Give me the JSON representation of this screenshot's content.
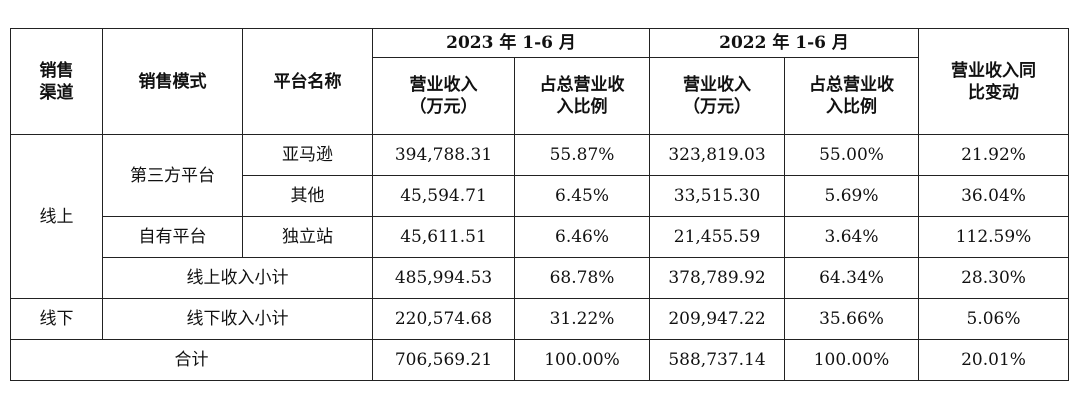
{
  "table": {
    "headers": {
      "channel": "销售\n渠道",
      "mode": "销售模式",
      "platform": "平台名称",
      "period_2023": "2023 年 1-6 月",
      "period_2022": "2022 年 1-6 月",
      "revenue": "营业收入\n（万元）",
      "ratio": "占总营业收\n入比例",
      "yoy": "营业收入同\n比变动"
    },
    "rows": {
      "amazon": {
        "channel": "线上",
        "mode": "第三方平台",
        "platform": "亚马逊",
        "rev_2023": "394,788.31",
        "ratio_2023": "55.87%",
        "rev_2022": "323,819.03",
        "ratio_2022": "55.00%",
        "yoy": "21.92%"
      },
      "other": {
        "platform": "其他",
        "rev_2023": "45,594.71",
        "ratio_2023": "6.45%",
        "rev_2022": "33,515.30",
        "ratio_2022": "5.69%",
        "yoy": "36.04%"
      },
      "own_site": {
        "mode": "自有平台",
        "platform": "独立站",
        "rev_2023": "45,611.51",
        "ratio_2023": "6.46%",
        "rev_2022": "21,455.59",
        "ratio_2022": "3.64%",
        "yoy": "112.59%"
      },
      "online_subtotal": {
        "label": "线上收入小计",
        "rev_2023": "485,994.53",
        "ratio_2023": "68.78%",
        "rev_2022": "378,789.92",
        "ratio_2022": "64.34%",
        "yoy": "28.30%"
      },
      "offline_subtotal": {
        "channel": "线下",
        "label": "线下收入小计",
        "rev_2023": "220,574.68",
        "ratio_2023": "31.22%",
        "rev_2022": "209,947.22",
        "ratio_2022": "35.66%",
        "yoy": "5.06%"
      },
      "total": {
        "label": "合计",
        "rev_2023": "706,569.21",
        "ratio_2023": "100.00%",
        "rev_2022": "588,737.14",
        "ratio_2022": "100.00%",
        "yoy": "20.01%"
      }
    }
  }
}
